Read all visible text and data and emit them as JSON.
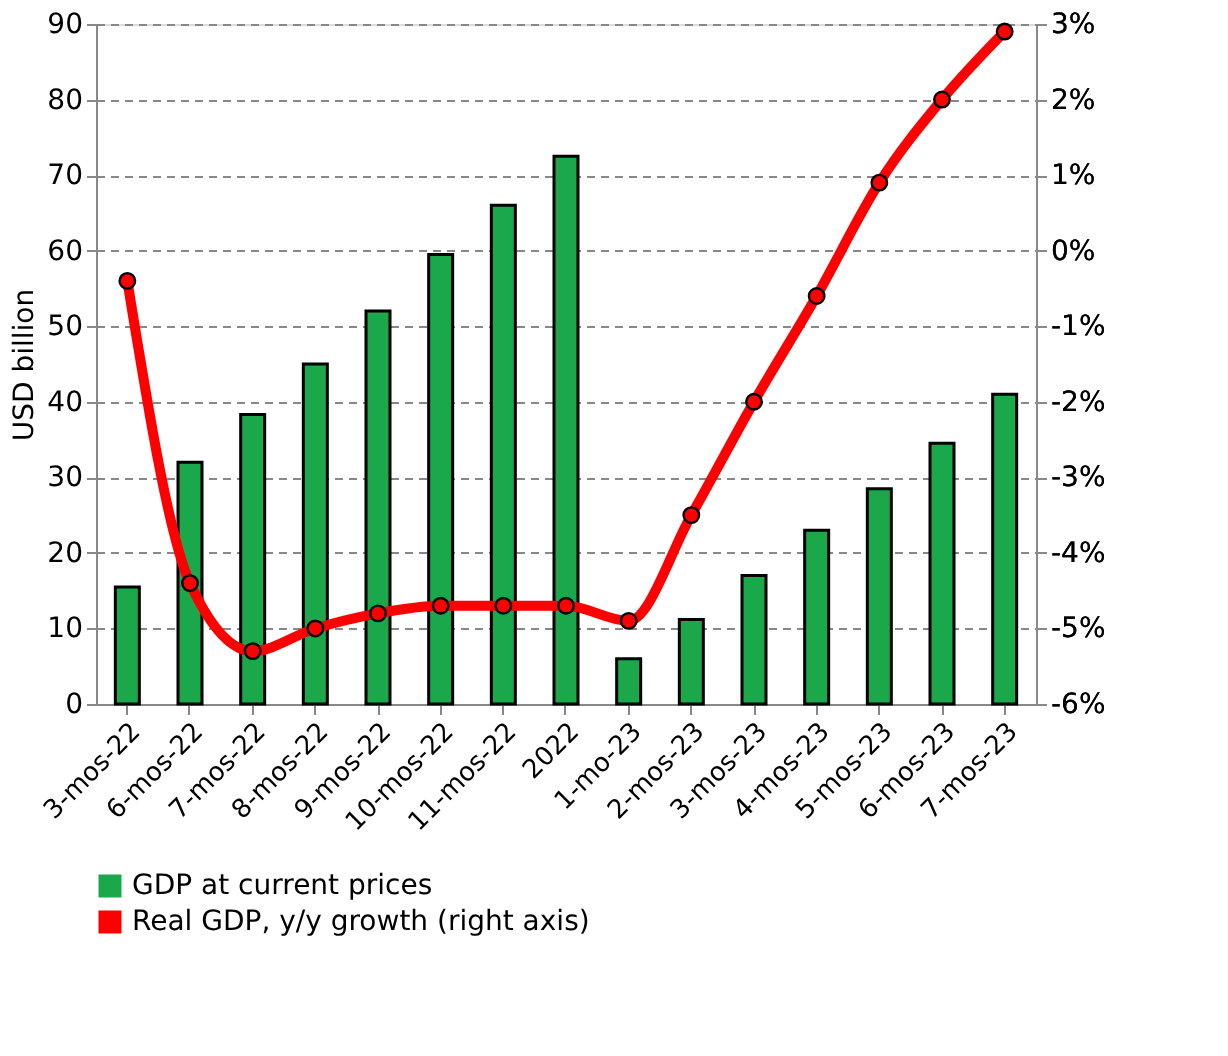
{
  "chart_data": {
    "type": "bar",
    "ylabel": "USD billion",
    "categories": [
      "3-mos-22",
      "6-mos-22",
      "7-mos-22",
      "8-mos-22",
      "9-mos-22",
      "10-mos-22",
      "11-mos-22",
      "2022",
      "1-mo-23",
      "2-mos-23",
      "3-mos-23",
      "4-mos-23",
      "5-mos-23",
      "6-mos-23",
      "7-mos-23"
    ],
    "series": [
      {
        "name": "GDP at current prices",
        "color": "#1aa84a",
        "values": [
          15.5,
          32,
          38.3,
          45,
          52,
          59.5,
          66,
          72.5,
          6,
          11.2,
          17,
          23,
          28.5,
          34.5,
          41
        ]
      },
      {
        "name": "Real GDP, y/y growth (right axis)",
        "color": "#ff0000",
        "type": "line",
        "axis": "y2",
        "marker": "circle",
        "line_style": "solid",
        "values": [
          -0.4,
          -4.4,
          -5.3,
          -5.0,
          -4.8,
          -4.7,
          -4.7,
          -4.7,
          -4.9,
          -3.5,
          -2.0,
          -0.6,
          0.9,
          2.0,
          2.9
        ]
      }
    ],
    "ylim": [
      0,
      90
    ],
    "yticks": [
      0,
      10,
      20,
      30,
      40,
      50,
      60,
      70,
      80,
      90
    ],
    "y2lim": [
      -6,
      3
    ],
    "y2ticks": [
      {
        "value": -6,
        "label": "-6%"
      },
      {
        "value": -5,
        "label": "-5%"
      },
      {
        "value": -4,
        "label": "-4%"
      },
      {
        "value": -3,
        "label": "-3%"
      },
      {
        "value": -2,
        "label": "-2%"
      },
      {
        "value": -1,
        "label": "-1%"
      },
      {
        "value": 0,
        "label": "0%"
      },
      {
        "value": 1,
        "label": "1%"
      },
      {
        "value": 2,
        "label": "2%"
      },
      {
        "value": 3,
        "label": "3%"
      }
    ],
    "grid": "y",
    "legend": "bottom"
  }
}
